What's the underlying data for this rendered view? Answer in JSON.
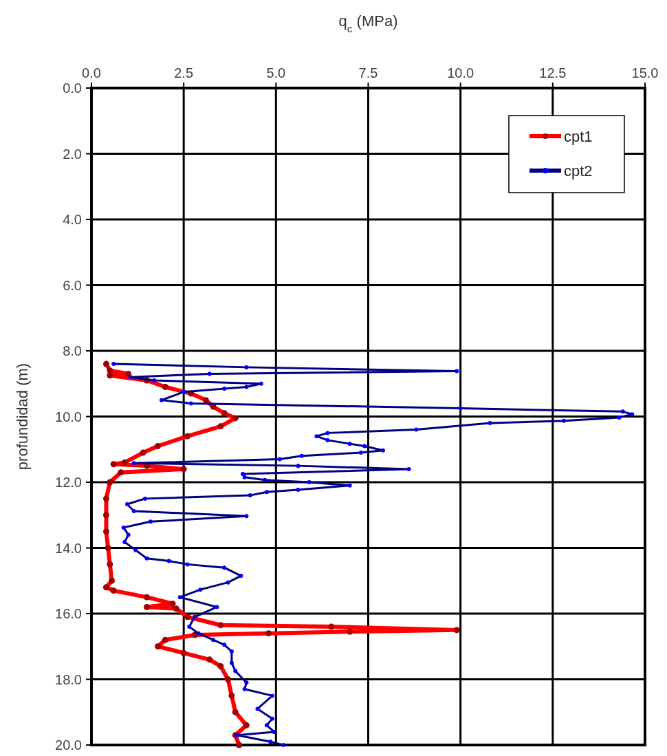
{
  "chart_data": {
    "type": "line",
    "xlabel": "q$_{c}$ (MPa)",
    "ylabel": "profundidad (m)",
    "xlim": [
      0,
      15
    ],
    "xticks": [
      {
        "value": 0,
        "label": "0.0"
      },
      {
        "value": 2.5,
        "label": "2.5"
      },
      {
        "value": 5,
        "label": "5.0"
      },
      {
        "value": 7.5,
        "label": "7.5"
      },
      {
        "value": 10,
        "label": "10.0"
      },
      {
        "value": 12.5,
        "label": "12.5"
      },
      {
        "value": 15,
        "label": "15.0"
      }
    ],
    "ylim": [
      20,
      0
    ],
    "yticks": [
      {
        "value": 0,
        "label": "0.0"
      },
      {
        "value": 2,
        "label": "2.0"
      },
      {
        "value": 4,
        "label": "4.0"
      },
      {
        "value": 6,
        "label": "6.0"
      },
      {
        "value": 8,
        "label": "8.0"
      },
      {
        "value": 10,
        "label": "10.0"
      },
      {
        "value": 12,
        "label": "12.0"
      },
      {
        "value": 14,
        "label": "14.0"
      },
      {
        "value": 16,
        "label": "16.0"
      },
      {
        "value": 18,
        "label": "18.0"
      },
      {
        "value": 20,
        "label": "20.0"
      }
    ],
    "grid": true,
    "legend": "top right",
    "marker": "circle",
    "line_style": "solid",
    "series": [
      {
        "name": "cpt1",
        "color": "#ff0000",
        "x": [
          0.4,
          0.5,
          1.0,
          0.5,
          1.5,
          2.0,
          2.7,
          3.1,
          3.3,
          3.6,
          3.9,
          3.5,
          2.6,
          1.8,
          1.4,
          0.9,
          0.6,
          1.5,
          2.5,
          0.8,
          0.5,
          0.4,
          0.4,
          0.4,
          0.45,
          0.5,
          0.55,
          0.4,
          0.6,
          1.5,
          2.2,
          1.5,
          2.3,
          2.6,
          3.5,
          6.5,
          9.9,
          7.0,
          4.8,
          2.8,
          2.0,
          1.8,
          2.5,
          3.2,
          3.5,
          3.7,
          3.8,
          3.9,
          4.2,
          3.9,
          4.0
        ],
        "values": [
          8.4,
          8.6,
          8.7,
          8.75,
          8.9,
          9.1,
          9.3,
          9.5,
          9.7,
          9.9,
          10.05,
          10.3,
          10.6,
          10.9,
          11.1,
          11.4,
          11.45,
          11.5,
          11.6,
          11.7,
          12.0,
          12.5,
          13.0,
          13.5,
          14.0,
          14.5,
          15.0,
          15.2,
          15.3,
          15.5,
          15.7,
          15.8,
          15.85,
          16.1,
          16.35,
          16.4,
          16.5,
          16.55,
          16.6,
          16.65,
          16.8,
          17.0,
          17.2,
          17.4,
          17.6,
          18.0,
          18.5,
          19.0,
          19.4,
          19.7,
          20.0
        ]
      },
      {
        "name": "cpt2",
        "color": "#000080",
        "x": [
          0.6,
          4.2,
          9.9,
          3.2,
          1.06,
          1.7,
          4.6,
          4.2,
          3.6,
          2.5,
          1.9,
          2.7,
          10.0,
          14.4,
          14.65,
          14.3,
          12.8,
          10.8,
          8.8,
          6.4,
          6.1,
          6.4,
          7.0,
          7.4,
          7.9,
          7.3,
          5.7,
          5.1,
          1.15,
          5.6,
          8.6,
          4.1,
          4.15,
          4.7,
          5.9,
          7.0,
          5.6,
          4.75,
          4.3,
          1.45,
          0.97,
          1.15,
          4.2,
          1.6,
          0.87,
          1.0,
          0.9,
          1.2,
          1.5,
          2.1,
          2.6,
          3.6,
          4.05,
          3.7,
          2.95,
          2.4,
          3.4,
          2.8,
          2.65,
          2.9,
          3.3,
          3.6,
          3.8,
          3.8,
          3.9,
          4.2,
          4.15,
          4.9,
          4.5,
          4.9,
          4.75,
          4.95,
          3.95,
          4.85,
          5.2
        ],
        "values": [
          8.4,
          8.5,
          8.62,
          8.7,
          8.8,
          8.9,
          9.0,
          9.1,
          9.15,
          9.25,
          9.5,
          9.6,
          9.75,
          9.85,
          9.93,
          10.03,
          10.13,
          10.2,
          10.4,
          10.5,
          10.6,
          10.72,
          10.83,
          10.9,
          11.03,
          11.1,
          11.2,
          11.3,
          11.42,
          11.5,
          11.6,
          11.75,
          11.85,
          11.93,
          12.0,
          12.1,
          12.23,
          12.3,
          12.4,
          12.5,
          12.67,
          12.88,
          13.03,
          13.2,
          13.38,
          13.6,
          13.82,
          14.07,
          14.32,
          14.4,
          14.5,
          14.6,
          14.85,
          15.05,
          15.27,
          15.5,
          15.8,
          16.1,
          16.4,
          16.6,
          16.8,
          16.95,
          17.15,
          17.5,
          17.75,
          18.1,
          18.3,
          18.5,
          18.9,
          19.2,
          19.4,
          19.6,
          19.7,
          19.9,
          20.0
        ]
      }
    ]
  }
}
